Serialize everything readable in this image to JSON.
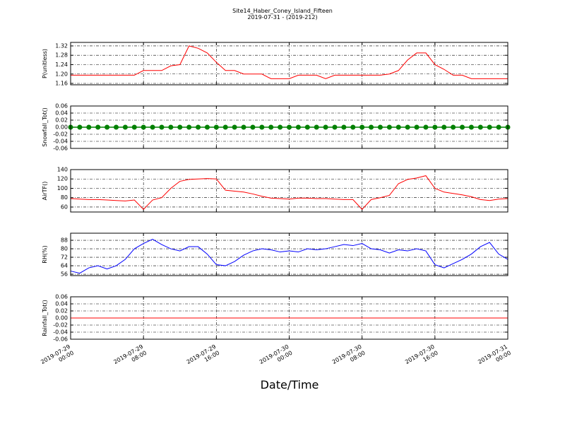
{
  "chart_data": [
    {
      "type": "line",
      "title": "Site14_Haber_Coney_Island_Fifteen",
      "subtitle": "2019-07-31 - (2019-212)",
      "ylabel": "P(unitless)",
      "color": "#ff0000",
      "grid": true,
      "xlim": [
        "2019-07-29 00:00",
        "2019-07-31 00:00"
      ],
      "x": [
        "2019-07-29 00:00",
        "2019-07-29 01:00",
        "2019-07-29 02:00",
        "2019-07-29 03:00",
        "2019-07-29 04:00",
        "2019-07-29 05:00",
        "2019-07-29 06:00",
        "2019-07-29 07:00",
        "2019-07-29 08:00",
        "2019-07-29 09:00",
        "2019-07-29 10:00",
        "2019-07-29 11:00",
        "2019-07-29 12:00",
        "2019-07-29 13:00",
        "2019-07-29 14:00",
        "2019-07-29 15:00",
        "2019-07-29 16:00",
        "2019-07-29 17:00",
        "2019-07-29 18:00",
        "2019-07-29 19:00",
        "2019-07-29 20:00",
        "2019-07-29 21:00",
        "2019-07-29 22:00",
        "2019-07-29 23:00",
        "2019-07-30 00:00",
        "2019-07-30 01:00",
        "2019-07-30 02:00",
        "2019-07-30 03:00",
        "2019-07-30 04:00",
        "2019-07-30 05:00",
        "2019-07-30 06:00",
        "2019-07-30 07:00",
        "2019-07-30 08:00",
        "2019-07-30 09:00",
        "2019-07-30 10:00",
        "2019-07-30 11:00",
        "2019-07-30 12:00",
        "2019-07-30 13:00",
        "2019-07-30 14:00",
        "2019-07-30 15:00",
        "2019-07-30 16:00",
        "2019-07-30 17:00",
        "2019-07-30 18:00",
        "2019-07-30 19:00",
        "2019-07-30 20:00",
        "2019-07-30 21:00",
        "2019-07-30 22:00",
        "2019-07-30 23:00",
        "2019-07-31 00:00"
      ],
      "values": [
        1.195,
        1.195,
        1.195,
        1.195,
        1.195,
        1.195,
        1.195,
        1.195,
        1.215,
        1.215,
        1.215,
        1.235,
        1.24,
        1.32,
        1.31,
        1.29,
        1.25,
        1.215,
        1.215,
        1.2,
        1.2,
        1.2,
        1.18,
        1.18,
        1.18,
        1.195,
        1.195,
        1.195,
        1.18,
        1.195,
        1.195,
        1.195,
        1.195,
        1.195,
        1.195,
        1.2,
        1.215,
        1.26,
        1.29,
        1.29,
        1.24,
        1.22,
        1.195,
        1.195,
        1.18,
        1.18,
        1.18,
        1.18,
        1.18
      ],
      "ylim": [
        1.154,
        1.335
      ],
      "yticks": [
        1.16,
        {
          "value": 1.2,
          "label": "1.20"
        },
        1.24,
        1.28,
        1.32
      ]
    },
    {
      "type": "line",
      "ylabel": "Snowfall_Tot()",
      "color": "#008000",
      "marker": true,
      "grid": true,
      "xlim": [
        "2019-07-29 00:00",
        "2019-07-31 00:00"
      ],
      "x": [
        "2019-07-29 00:00",
        "2019-07-29 01:00",
        "2019-07-29 02:00",
        "2019-07-29 03:00",
        "2019-07-29 04:00",
        "2019-07-29 05:00",
        "2019-07-29 06:00",
        "2019-07-29 07:00",
        "2019-07-29 08:00",
        "2019-07-29 09:00",
        "2019-07-29 10:00",
        "2019-07-29 11:00",
        "2019-07-29 12:00",
        "2019-07-29 13:00",
        "2019-07-29 14:00",
        "2019-07-29 15:00",
        "2019-07-29 16:00",
        "2019-07-29 17:00",
        "2019-07-29 18:00",
        "2019-07-29 19:00",
        "2019-07-29 20:00",
        "2019-07-29 21:00",
        "2019-07-29 22:00",
        "2019-07-29 23:00",
        "2019-07-30 00:00",
        "2019-07-30 01:00",
        "2019-07-30 02:00",
        "2019-07-30 03:00",
        "2019-07-30 04:00",
        "2019-07-30 05:00",
        "2019-07-30 06:00",
        "2019-07-30 07:00",
        "2019-07-30 08:00",
        "2019-07-30 09:00",
        "2019-07-30 10:00",
        "2019-07-30 11:00",
        "2019-07-30 12:00",
        "2019-07-30 13:00",
        "2019-07-30 14:00",
        "2019-07-30 15:00",
        "2019-07-30 16:00",
        "2019-07-30 17:00",
        "2019-07-30 18:00",
        "2019-07-30 19:00",
        "2019-07-30 20:00",
        "2019-07-30 21:00",
        "2019-07-30 22:00",
        "2019-07-30 23:00",
        "2019-07-31 00:00"
      ],
      "values": [
        0,
        0,
        0,
        0,
        0,
        0,
        0,
        0,
        0,
        0,
        0,
        0,
        0,
        0,
        0,
        0,
        0,
        0,
        0,
        0,
        0,
        0,
        0,
        0,
        0,
        0,
        0,
        0,
        0,
        0,
        0,
        0,
        0,
        0,
        0,
        0,
        0,
        0,
        0,
        0,
        0,
        0,
        0,
        0,
        0,
        0,
        0,
        0,
        0
      ],
      "ylim": [
        -0.06,
        0.06
      ],
      "yticks": [
        -0.06,
        -0.04,
        -0.02,
        {
          "value": 0,
          "label": "0.00"
        },
        0.02,
        0.04,
        0.06
      ]
    },
    {
      "type": "line",
      "ylabel": "AirTF()",
      "color": "#ff0000",
      "grid": true,
      "xlim": [
        "2019-07-29 00:00",
        "2019-07-31 00:00"
      ],
      "x": [
        "2019-07-29 00:00",
        "2019-07-29 01:00",
        "2019-07-29 02:00",
        "2019-07-29 03:00",
        "2019-07-29 04:00",
        "2019-07-29 05:00",
        "2019-07-29 06:00",
        "2019-07-29 07:00",
        "2019-07-29 08:00",
        "2019-07-29 09:00",
        "2019-07-29 10:00",
        "2019-07-29 11:00",
        "2019-07-29 12:00",
        "2019-07-29 13:00",
        "2019-07-29 14:00",
        "2019-07-29 15:00",
        "2019-07-29 16:00",
        "2019-07-29 17:00",
        "2019-07-29 18:00",
        "2019-07-29 19:00",
        "2019-07-29 20:00",
        "2019-07-29 21:00",
        "2019-07-29 22:00",
        "2019-07-29 23:00",
        "2019-07-30 00:00",
        "2019-07-30 01:00",
        "2019-07-30 02:00",
        "2019-07-30 03:00",
        "2019-07-30 04:00",
        "2019-07-30 05:00",
        "2019-07-30 06:00",
        "2019-07-30 07:00",
        "2019-07-30 08:00",
        "2019-07-30 09:00",
        "2019-07-30 10:00",
        "2019-07-30 11:00",
        "2019-07-30 12:00",
        "2019-07-30 13:00",
        "2019-07-30 14:00",
        "2019-07-30 15:00",
        "2019-07-30 16:00",
        "2019-07-30 17:00",
        "2019-07-30 18:00",
        "2019-07-30 19:00",
        "2019-07-30 20:00",
        "2019-07-30 21:00",
        "2019-07-30 22:00",
        "2019-07-30 23:00",
        "2019-07-31 00:00"
      ],
      "values": [
        78,
        77,
        76,
        76,
        75,
        74,
        73,
        75,
        55,
        75,
        80,
        100,
        115,
        119,
        120,
        121,
        120,
        96,
        94,
        92,
        88,
        83,
        79,
        78,
        77,
        79,
        79,
        78,
        78,
        77,
        76,
        76,
        55,
        76,
        80,
        85,
        110,
        119,
        122,
        127,
        100,
        92,
        89,
        86,
        82,
        76,
        74,
        77,
        78
      ],
      "ylim": [
        49.4,
        140
      ],
      "yticks": [
        60,
        80,
        100,
        120,
        140
      ]
    },
    {
      "type": "line",
      "ylabel": "RH(%)",
      "color": "#0000ff",
      "grid": true,
      "xlim": [
        "2019-07-29 00:00",
        "2019-07-31 00:00"
      ],
      "x": [
        "2019-07-29 00:00",
        "2019-07-29 01:00",
        "2019-07-29 02:00",
        "2019-07-29 03:00",
        "2019-07-29 04:00",
        "2019-07-29 05:00",
        "2019-07-29 06:00",
        "2019-07-29 07:00",
        "2019-07-29 08:00",
        "2019-07-29 09:00",
        "2019-07-29 10:00",
        "2019-07-29 11:00",
        "2019-07-29 12:00",
        "2019-07-29 13:00",
        "2019-07-29 14:00",
        "2019-07-29 15:00",
        "2019-07-29 16:00",
        "2019-07-29 17:00",
        "2019-07-29 18:00",
        "2019-07-29 19:00",
        "2019-07-29 20:00",
        "2019-07-29 21:00",
        "2019-07-29 22:00",
        "2019-07-29 23:00",
        "2019-07-30 00:00",
        "2019-07-30 01:00",
        "2019-07-30 02:00",
        "2019-07-30 03:00",
        "2019-07-30 04:00",
        "2019-07-30 05:00",
        "2019-07-30 06:00",
        "2019-07-30 07:00",
        "2019-07-30 08:00",
        "2019-07-30 09:00",
        "2019-07-30 10:00",
        "2019-07-30 11:00",
        "2019-07-30 12:00",
        "2019-07-30 13:00",
        "2019-07-30 14:00",
        "2019-07-30 15:00",
        "2019-07-30 16:00",
        "2019-07-30 17:00",
        "2019-07-30 18:00",
        "2019-07-30 19:00",
        "2019-07-30 20:00",
        "2019-07-30 21:00",
        "2019-07-30 22:00",
        "2019-07-30 23:00",
        "2019-07-31 00:00"
      ],
      "values": [
        59,
        57,
        62,
        64,
        61,
        64,
        70,
        80,
        85,
        89,
        84,
        80,
        78,
        82,
        82,
        75,
        65,
        64,
        68,
        74,
        78,
        80,
        79,
        77,
        78,
        77,
        80,
        79,
        80,
        82,
        84,
        83,
        85,
        80,
        79,
        76,
        79,
        78,
        80,
        78,
        65,
        62,
        66,
        70,
        75,
        82,
        86,
        75,
        70
      ],
      "ylim": [
        54.7,
        94.7
      ],
      "yticks": [
        56,
        64,
        72,
        80,
        88
      ]
    },
    {
      "type": "line",
      "ylabel": "Rainfall_Tot()",
      "color": "#ff0000",
      "grid": true,
      "xlabel": "Date/Time",
      "xlim": [
        "2019-07-29 00:00",
        "2019-07-31 00:00"
      ],
      "xticks": [
        "2019-07-29 00:00",
        "2019-07-29 08:00",
        "2019-07-29 16:00",
        "2019-07-30 00:00",
        "2019-07-30 08:00",
        "2019-07-30 16:00",
        "2019-07-31 00:00"
      ],
      "x": [
        "2019-07-29 00:00",
        "2019-07-29 01:00",
        "2019-07-29 02:00",
        "2019-07-29 03:00",
        "2019-07-29 04:00",
        "2019-07-29 05:00",
        "2019-07-29 06:00",
        "2019-07-29 07:00",
        "2019-07-29 08:00",
        "2019-07-29 09:00",
        "2019-07-29 10:00",
        "2019-07-29 11:00",
        "2019-07-29 12:00",
        "2019-07-29 13:00",
        "2019-07-29 14:00",
        "2019-07-29 15:00",
        "2019-07-29 16:00",
        "2019-07-29 17:00",
        "2019-07-29 18:00",
        "2019-07-29 19:00",
        "2019-07-29 20:00",
        "2019-07-29 21:00",
        "2019-07-29 22:00",
        "2019-07-29 23:00",
        "2019-07-30 00:00",
        "2019-07-30 01:00",
        "2019-07-30 02:00",
        "2019-07-30 03:00",
        "2019-07-30 04:00",
        "2019-07-30 05:00",
        "2019-07-30 06:00",
        "2019-07-30 07:00",
        "2019-07-30 08:00",
        "2019-07-30 09:00",
        "2019-07-30 10:00",
        "2019-07-30 11:00",
        "2019-07-30 12:00",
        "2019-07-30 13:00",
        "2019-07-30 14:00",
        "2019-07-30 15:00",
        "2019-07-30 16:00",
        "2019-07-30 17:00",
        "2019-07-30 18:00",
        "2019-07-30 19:00",
        "2019-07-30 20:00",
        "2019-07-30 21:00",
        "2019-07-30 22:00",
        "2019-07-30 23:00",
        "2019-07-31 00:00"
      ],
      "values": [
        0,
        0,
        0,
        0,
        0,
        0,
        0,
        0,
        0,
        0,
        0,
        0,
        0,
        0,
        0,
        0,
        0,
        0,
        0,
        0,
        0,
        0,
        0,
        0,
        0,
        0,
        0,
        0,
        0,
        0,
        0,
        0,
        0,
        0,
        0,
        0,
        0,
        0,
        0,
        0,
        0,
        0,
        0,
        0,
        0,
        0,
        0,
        0,
        0
      ],
      "ylim": [
        -0.06,
        0.06
      ],
      "yticks": [
        -0.06,
        -0.04,
        -0.02,
        {
          "value": 0,
          "label": "0.00"
        },
        0.02,
        0.04,
        0.06
      ]
    }
  ]
}
